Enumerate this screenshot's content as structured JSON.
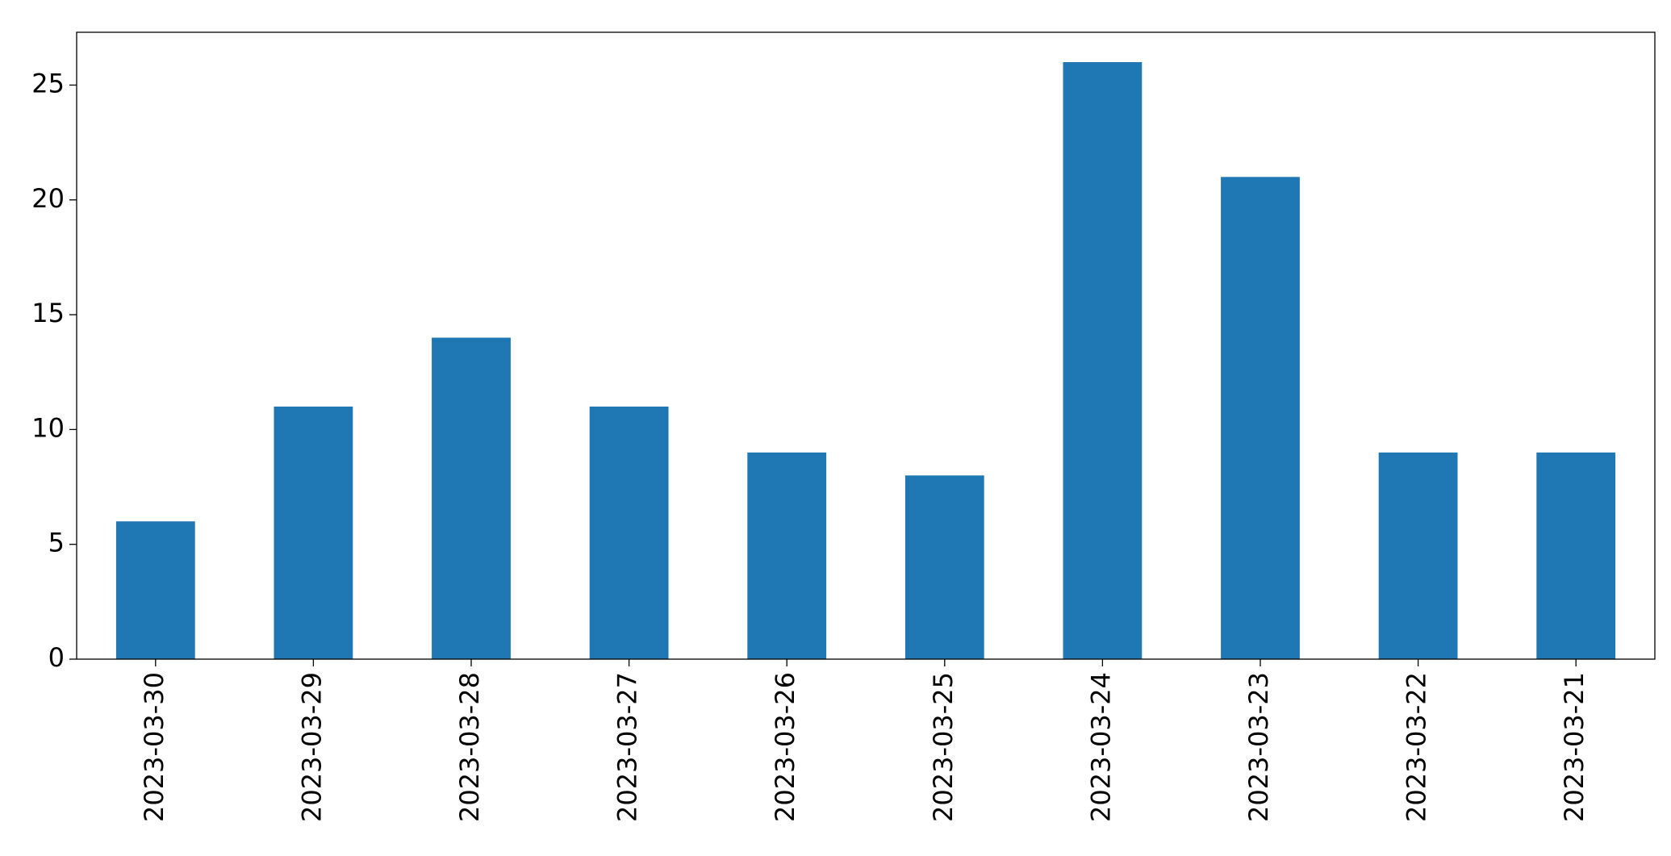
{
  "chart_data": {
    "type": "bar",
    "categories": [
      "2023-03-30",
      "2023-03-29",
      "2023-03-28",
      "2023-03-27",
      "2023-03-26",
      "2023-03-25",
      "2023-03-24",
      "2023-03-23",
      "2023-03-22",
      "2023-03-21"
    ],
    "values": [
      6,
      11,
      14,
      11,
      9,
      8,
      26,
      21,
      9,
      9
    ],
    "color": "#1f77b4",
    "ylim": [
      0,
      27.3
    ],
    "yticks": [
      0,
      5,
      10,
      15,
      20,
      25
    ],
    "grid": false
  }
}
